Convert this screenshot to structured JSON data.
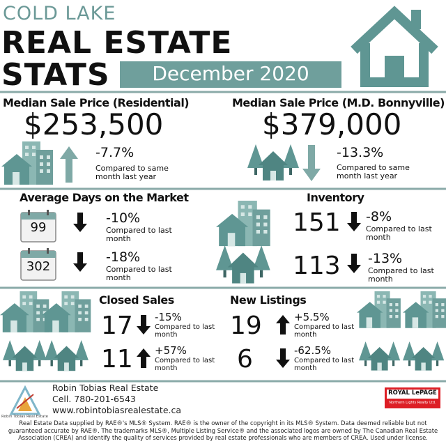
{
  "header": {
    "city": "COLD LAKE",
    "title_1": "REAL ESTATE",
    "title_2": "STATS",
    "period": "December 2020"
  },
  "median_residential": {
    "label": "Median Sale Price (Residential)",
    "value": "$253,500",
    "change": "-7.7%",
    "note": "Compared to same month last year"
  },
  "median_md": {
    "label": "Median Sale Price (M.D. Bonnyville)",
    "value": "$379,000",
    "change": "-13.3%",
    "note": "Compared to same month last year"
  },
  "days_on_market": {
    "title": "Average Days on the Market",
    "rows": [
      {
        "value": "99",
        "change": "-10%",
        "note": "Compared to last month"
      },
      {
        "value": "302",
        "change": "-18%",
        "note": "Compared to last month"
      }
    ]
  },
  "inventory": {
    "title": "Inventory",
    "rows": [
      {
        "value": "151",
        "change": "-8%",
        "note": "Compared to last month"
      },
      {
        "value": "113",
        "change": "-13%",
        "note": "Compared to last month"
      }
    ]
  },
  "closed_sales": {
    "title": "Closed Sales",
    "rows": [
      {
        "value": "17",
        "change": "-15%",
        "note": "Compared to last month"
      },
      {
        "value": "11",
        "change": "+57%",
        "note": "Compared to last month"
      }
    ]
  },
  "new_listings": {
    "title": "New Listings",
    "rows": [
      {
        "value": "19",
        "change": "+5.5%",
        "note": "Compared to last month"
      },
      {
        "value": "6",
        "change": "-62.5%",
        "note": "Compared to last month"
      }
    ]
  },
  "footer": {
    "logo_text": "Robin Tobias Real Estate",
    "agent": "Robin Tobias Real Estate",
    "phone": "Cell. 780-201-6543",
    "website": "www.robintobiasrealestate.ca",
    "brokerage": "ROYAL LePAGE",
    "brokerage_sub": "Northern Lights Realty Ltd.",
    "disclaimer": "Real Estate Data supplied by RAE®'s MLS® System. RAE® is the owner of the copyright in its MLS® System. Data deemed reliable but not guaranteed accurate by RAE®. The trademarks MLS®, Multiple Listing Service® and the associated logos are owned by The Canadian Real Estate Association (CREA) and identify the quality of services provided by real estate professionals who are members of CREA. Used under license."
  }
}
